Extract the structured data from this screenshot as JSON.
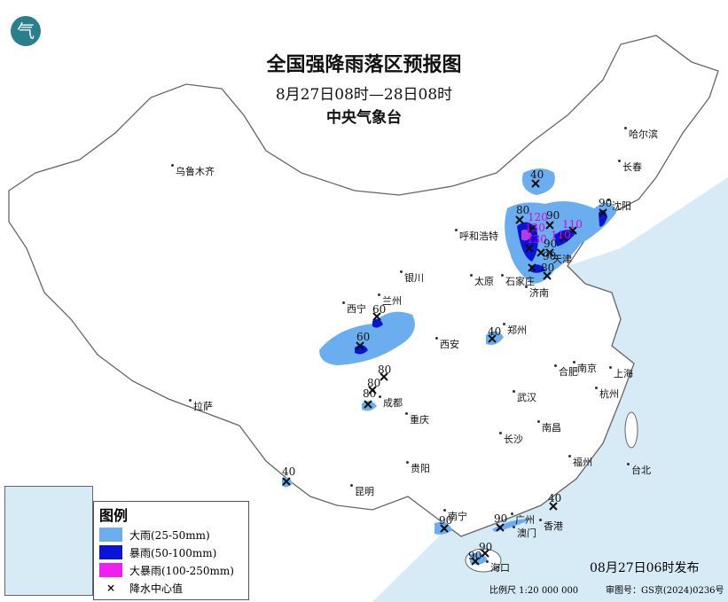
{
  "title": "全国强降雨落区预报图",
  "period": "8月27日08时—28日08时",
  "agency": "中央气象台",
  "logo_text": "气",
  "issued": "08月27日06时发布",
  "scale": "比例尺 1:20 000 000",
  "review_no": "审图号：GS京(2024)0236号",
  "legend": {
    "title": "图例",
    "items": [
      {
        "label": "大雨(25-50mm)",
        "color": "#6aaef0"
      },
      {
        "label": "暴雨(50-100mm)",
        "color": "#0a14d8"
      },
      {
        "label": "大暴雨(100-250mm)",
        "color": "#f01ef0"
      },
      {
        "label": "降水中心值",
        "icon": "cross-icon"
      }
    ]
  },
  "colors": {
    "sea": "#d7ebf6",
    "land": "#ffffff",
    "border": "#666666"
  },
  "cities": [
    "乌鲁木齐",
    "哈尔滨",
    "长春",
    "沈阳",
    "呼和浩特",
    "天津",
    "太原",
    "石家庄",
    "济南",
    "银川",
    "兰州",
    "西宁",
    "西安",
    "郑州",
    "合肥",
    "南京",
    "上海",
    "杭州",
    "成都",
    "重庆",
    "武汉",
    "拉萨",
    "南昌",
    "长沙",
    "福州",
    "台北",
    "贵阳",
    "昆明",
    "南宁",
    "广州",
    "澳门",
    "香港",
    "海口"
  ],
  "rain_centers": [
    "40",
    "80",
    "120",
    "90",
    "130",
    "110",
    "130",
    "110",
    "90",
    "90",
    "80",
    "90",
    "60",
    "60",
    "40",
    "80",
    "80",
    "80",
    "40",
    "90",
    "90",
    "40",
    "90",
    "90"
  ]
}
